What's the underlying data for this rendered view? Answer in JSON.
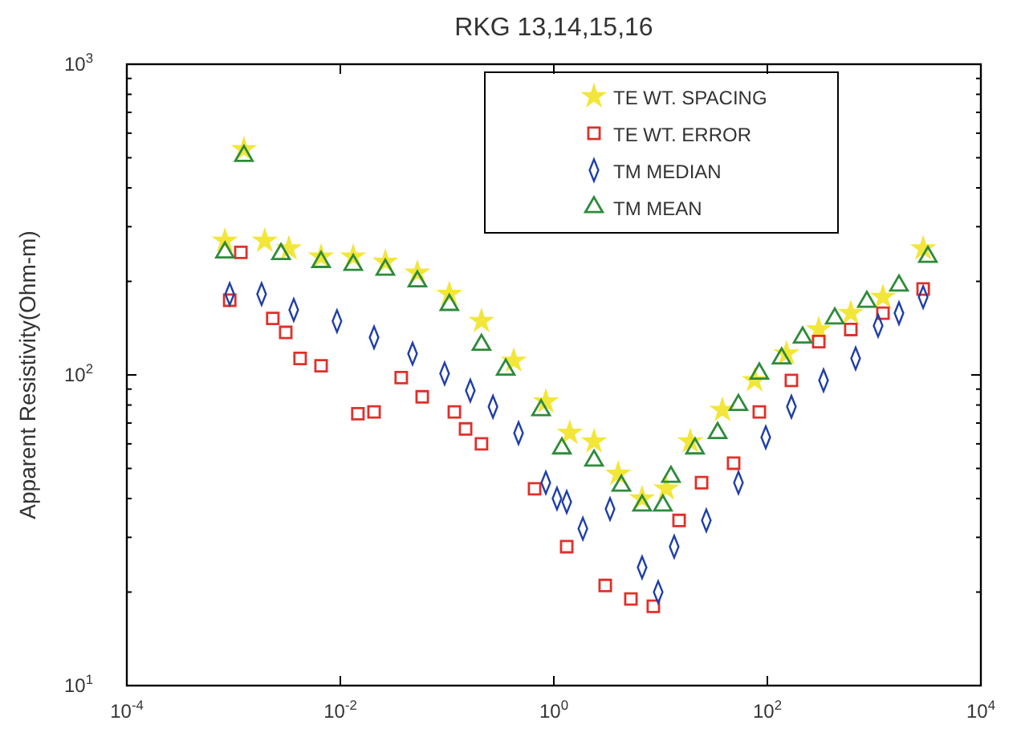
{
  "chart_data": {
    "type": "scatter",
    "title": "RKG 13,14,15,16",
    "ylabel": "Apparent Resistivity(Ohm-m)",
    "log": "xy",
    "grid": false,
    "legend": "top right",
    "xlim": [
      0.0001,
      10000
    ],
    "ylim": [
      10,
      1000
    ],
    "xticks": [
      {
        "value": 0.0001,
        "label": "10$^{-4}$"
      },
      {
        "value": 0.01,
        "label": "10$^{-2}$"
      },
      {
        "value": 1,
        "label": "10$^{0}$"
      },
      {
        "value": 100,
        "label": "10$^{2}$"
      },
      {
        "value": 10000,
        "label": "10$^{4}$"
      }
    ],
    "yticks": [
      {
        "value": 10,
        "label": "10$^{1}$"
      },
      {
        "value": 20,
        "label": null
      },
      {
        "value": 30,
        "label": null
      },
      {
        "value": 40,
        "label": null
      },
      {
        "value": 50,
        "label": null
      },
      {
        "value": 60,
        "label": null
      },
      {
        "value": 70,
        "label": null
      },
      {
        "value": 80,
        "label": null
      },
      {
        "value": 90,
        "label": null
      },
      {
        "value": 100,
        "label": "10$^{2}$"
      },
      {
        "value": 200,
        "label": null
      },
      {
        "value": 300,
        "label": null
      },
      {
        "value": 400,
        "label": null
      },
      {
        "value": 500,
        "label": null
      },
      {
        "value": 600,
        "label": null
      },
      {
        "value": 700,
        "label": null
      },
      {
        "value": 800,
        "label": null
      },
      {
        "value": 900,
        "label": null
      },
      {
        "value": 1000,
        "label": "10$^{3}$"
      }
    ],
    "series": [
      {
        "name": "TE WT. SPACING",
        "color": "#f2e63a",
        "marker": "star",
        "x": [
          0.00083,
          0.00125,
          0.00196,
          0.0033,
          0.0066,
          0.0132,
          0.0264,
          0.0527,
          0.105,
          0.21,
          0.421,
          0.841,
          1.41,
          2.38,
          4.0,
          6.71,
          11.3,
          19.0,
          37.9,
          75.9,
          151,
          303,
          605,
          1210,
          2880
        ],
        "values": [
          270,
          532,
          270,
          255,
          240,
          240,
          231,
          213,
          182,
          149,
          111,
          82,
          65,
          61,
          48,
          40,
          43,
          61,
          77,
          96,
          117,
          140,
          158,
          178,
          255
        ]
      },
      {
        "name": "TE WT. ERROR",
        "color": "#e0302a",
        "marker": "square",
        "x": [
          0.00092,
          0.00117,
          0.00233,
          0.00308,
          0.0042,
          0.0066,
          0.0146,
          0.0207,
          0.0372,
          0.0585,
          0.117,
          0.149,
          0.21,
          0.66,
          1.32,
          3.03,
          5.27,
          8.55,
          14.9,
          24.2,
          48.3,
          84.1,
          168,
          303,
          605,
          1210,
          2880
        ],
        "values": [
          174,
          248,
          152,
          137,
          113,
          107,
          75,
          76,
          98,
          85,
          76,
          67,
          60,
          43,
          28,
          21,
          19,
          18,
          34,
          45,
          52,
          76,
          96,
          128,
          140,
          158,
          189
        ]
      },
      {
        "name": "TM MEDIAN",
        "color": "#1f3fa8",
        "marker": "diamond",
        "x": [
          0.00092,
          0.00183,
          0.00366,
          0.0093,
          0.0207,
          0.0475,
          0.0948,
          0.165,
          0.269,
          0.467,
          0.841,
          1.07,
          1.32,
          1.87,
          3.36,
          6.71,
          9.49,
          13.4,
          26.8,
          53.6,
          96.6,
          168,
          336,
          671,
          1090,
          1710,
          2880
        ],
        "values": [
          182,
          182,
          162,
          149,
          132,
          117,
          101,
          89,
          79,
          65,
          45,
          40,
          39,
          32,
          37,
          24,
          20,
          28,
          34,
          45,
          63,
          79,
          96,
          113,
          144,
          158,
          178
        ]
      },
      {
        "name": "TM MEAN",
        "color": "#2e8b3a",
        "marker": "triangle",
        "x": [
          0.00083,
          0.00125,
          0.00278,
          0.0066,
          0.0132,
          0.0264,
          0.0527,
          0.105,
          0.21,
          0.354,
          0.759,
          1.19,
          2.38,
          4.29,
          6.71,
          10.5,
          12.5,
          21.0,
          34.2,
          53.6,
          84.1,
          136,
          214,
          428,
          855,
          1710,
          3190
        ],
        "values": [
          248,
          507,
          245,
          231,
          226,
          218,
          200,
          168,
          125,
          104,
          77,
          58,
          53,
          44,
          38,
          38,
          47,
          58,
          65,
          80,
          101,
          113,
          132,
          152,
          172,
          194,
          240
        ]
      }
    ]
  }
}
